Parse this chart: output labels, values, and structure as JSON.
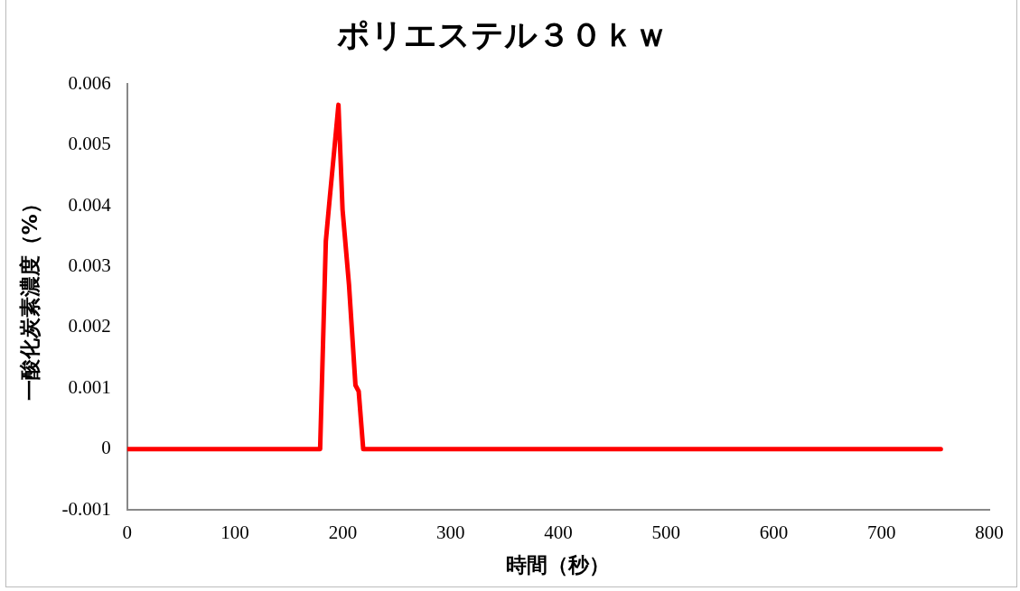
{
  "chart_data": {
    "type": "line",
    "title": "ポリエステル３０ｋｗ",
    "xlabel": "時間（秒）",
    "ylabel": "一酸化炭素濃度（%）",
    "x": [
      0,
      50,
      100,
      150,
      175,
      179,
      184.3,
      188,
      192.4,
      196,
      199.8,
      205.8,
      211.8,
      214.8,
      219,
      225,
      270,
      350,
      400,
      450,
      500,
      550,
      600,
      650,
      700,
      755
    ],
    "series": [
      {
        "color": "#ff0000",
        "values": [
          0,
          0,
          0,
          0,
          0,
          0,
          0.00342,
          0.00414,
          0.00497,
          0.00566,
          0.00394,
          0.0027,
          0.00105,
          0.00095,
          0,
          0,
          0,
          0,
          0,
          0,
          0,
          0,
          0,
          0,
          0,
          0
        ]
      }
    ],
    "xlim": [
      0,
      800
    ],
    "xticks": [
      0,
      100,
      200,
      300,
      400,
      500,
      600,
      700,
      800
    ],
    "ylim": [
      -0.001,
      0.006
    ],
    "yticks": [
      -0.001,
      0,
      0.001,
      0.002,
      0.003,
      0.004,
      0.005,
      0.006
    ],
    "grid": false,
    "legend": false,
    "marker": "none",
    "line_style": "solid"
  }
}
